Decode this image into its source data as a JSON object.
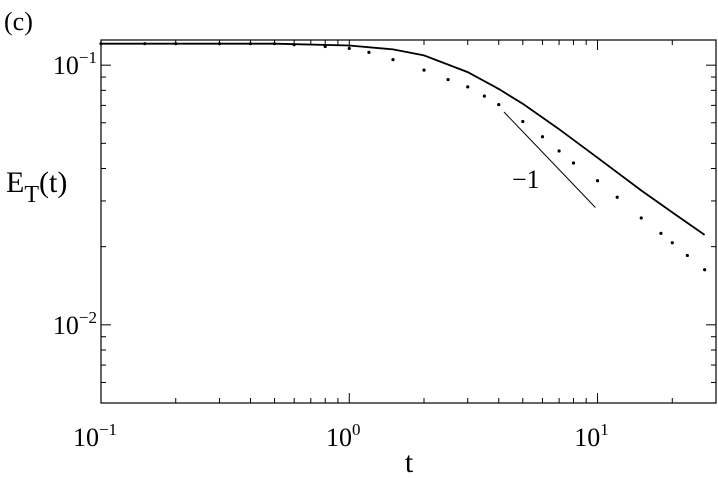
{
  "chart_data": {
    "type": "line",
    "panel_label": "(c)",
    "xlabel": "t",
    "ylabel": {
      "main": "E",
      "sub": "T",
      "rest": "(t)"
    },
    "xscale": "log",
    "yscale": "log",
    "xlim": [
      0.1,
      30
    ],
    "ylim": [
      0.005,
      0.125
    ],
    "xticks": [
      {
        "value": 0.1,
        "label": "10",
        "exponent": "−1"
      },
      {
        "value": 1,
        "label": "10",
        "exponent": "0"
      },
      {
        "value": 10,
        "label": "10",
        "exponent": "1"
      }
    ],
    "yticks": [
      {
        "value": 0.1,
        "label": "10",
        "exponent": "−1"
      },
      {
        "value": 0.01,
        "label": "10",
        "exponent": "−2"
      }
    ],
    "xminorticks": [
      0.2,
      0.3,
      0.4,
      0.5,
      0.6,
      0.7,
      0.8,
      0.9,
      2,
      3,
      4,
      5,
      6,
      7,
      8,
      9,
      20
    ],
    "yminorticks": [
      0.006,
      0.007,
      0.008,
      0.009,
      0.02,
      0.03,
      0.04,
      0.05,
      0.06,
      0.07,
      0.08,
      0.09
    ],
    "series": [
      {
        "style": "solid",
        "color": "#000000",
        "x": [
          0.1,
          0.5,
          1,
          1.5,
          2,
          3,
          4,
          5,
          7,
          10,
          15,
          20,
          27
        ],
        "values": [
          0.121,
          0.121,
          0.119,
          0.115,
          0.109,
          0.094,
          0.081,
          0.071,
          0.0567,
          0.044,
          0.0329,
          0.0271,
          0.0222
        ]
      },
      {
        "style": "dotted",
        "color": "#000000",
        "x": [
          0.1,
          0.15,
          0.2,
          0.3,
          0.4,
          0.5,
          0.6,
          0.8,
          1,
          1.2,
          1.5,
          2,
          2.5,
          3,
          3.5,
          4,
          5,
          6,
          7,
          8,
          10,
          12,
          15,
          18,
          20,
          23,
          27
        ],
        "values": [
          0.121,
          0.121,
          0.121,
          0.121,
          0.121,
          0.121,
          0.12,
          0.118,
          0.116,
          0.112,
          0.105,
          0.0957,
          0.088,
          0.0825,
          0.076,
          0.0705,
          0.0607,
          0.053,
          0.0467,
          0.042,
          0.0359,
          0.031,
          0.0258,
          0.0225,
          0.0207,
          0.0185,
          0.0163
        ]
      },
      {
        "style": "reference",
        "color": "#000000",
        "name": "−1",
        "x": [
          4.2,
          9.8
        ],
        "values": [
          0.066,
          0.0283
        ]
      }
    ]
  }
}
